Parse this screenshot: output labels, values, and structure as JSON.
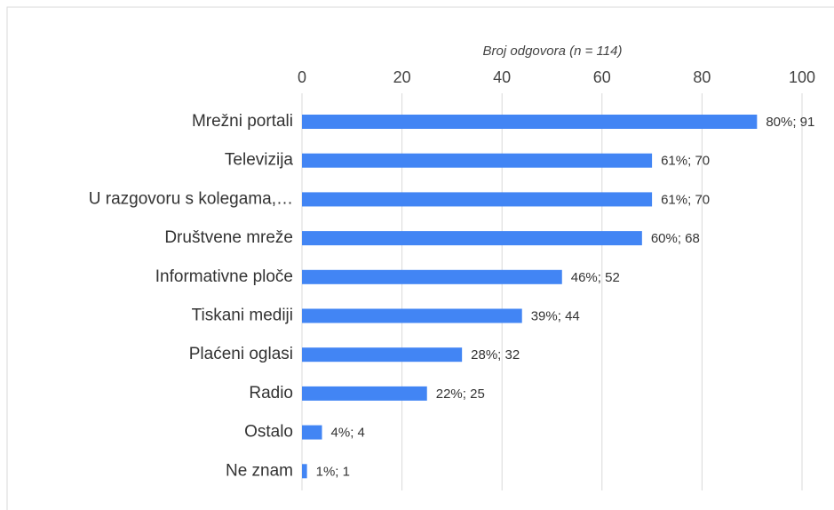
{
  "chart_data": {
    "type": "bar",
    "orientation": "horizontal",
    "x_label": "Broj odgovora  (n = 114)",
    "categories": [
      "Mrežni portali",
      "Televizija",
      "U razgovoru s kolegama,…",
      "Društvene mreže",
      "Informativne ploče",
      "Tiskani mediji",
      "Plaćeni oglasi",
      "Radio",
      "Ostalo",
      "Ne znam"
    ],
    "values": [
      91,
      70,
      70,
      68,
      52,
      44,
      32,
      25,
      4,
      1
    ],
    "value_labels": [
      "80%; 91",
      "61%; 70",
      "61%; 70",
      "60%; 68",
      "46%; 52",
      "39%; 44",
      "28%; 32",
      "22%; 25",
      "4%; 4",
      "1%; 1"
    ],
    "color": "#4285f4",
    "xlim": [
      0,
      100
    ],
    "xticks": [
      0,
      20,
      40,
      60,
      80,
      100
    ],
    "grid": true
  }
}
